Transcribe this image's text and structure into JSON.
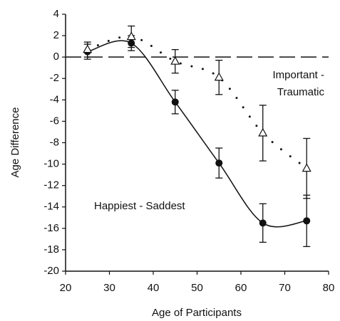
{
  "chart_data": {
    "type": "scatter",
    "xlabel": "Age of Participants",
    "ylabel": "Age Difference",
    "xlim": [
      20,
      80
    ],
    "xticks": [
      20,
      30,
      40,
      50,
      60,
      70,
      80
    ],
    "ylim": [
      -20,
      4
    ],
    "yticks": [
      -20,
      -18,
      -16,
      -14,
      -12,
      -10,
      -8,
      -6,
      -4,
      -2,
      0,
      2,
      4
    ],
    "reference_line": {
      "y": 0,
      "style": "dashed"
    },
    "series": [
      {
        "marker": "circle",
        "color": "#111111",
        "line": "solid",
        "x": [
          25,
          35,
          45,
          55,
          65,
          75
        ],
        "values": [
          0.5,
          1.3,
          -4.2,
          -9.9,
          -15.5,
          -15.3
        ],
        "errors": [
          0.7,
          0.7,
          1.1,
          1.4,
          1.8,
          2.4
        ]
      },
      {
        "marker": "triangle",
        "color": "#111111",
        "line": "dotted",
        "x": [
          25,
          35,
          45,
          55,
          65,
          75
        ],
        "values": [
          0.7,
          1.9,
          -0.4,
          -1.9,
          -7.1,
          -10.4
        ],
        "errors": [
          0.7,
          1.0,
          1.1,
          1.6,
          2.6,
          2.8
        ]
      }
    ],
    "annotations": [
      {
        "lines": [
          "Important -",
          "Traumatic"
        ]
      },
      {
        "lines": [
          "Happiest - Saddest"
        ]
      }
    ]
  }
}
